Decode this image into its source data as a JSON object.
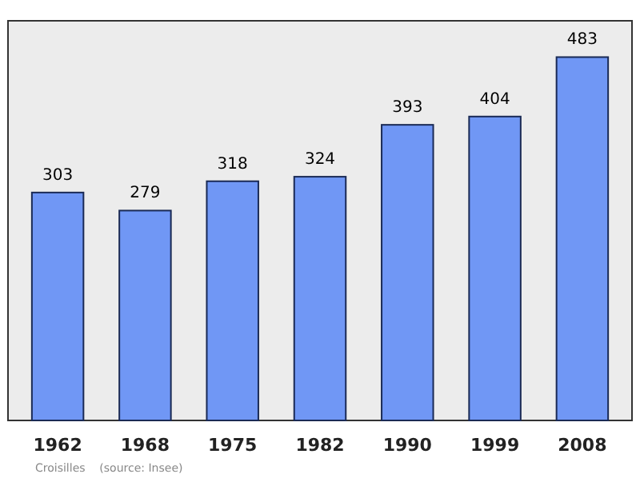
{
  "chart_data": {
    "type": "bar",
    "categories": [
      "1962",
      "1968",
      "1975",
      "1982",
      "1990",
      "1999",
      "2008"
    ],
    "values": [
      303,
      279,
      318,
      324,
      393,
      404,
      483
    ],
    "color": "#7097f5",
    "data_labels": true,
    "annotations": [
      "Croisilles    (source: Insee)"
    ]
  }
}
